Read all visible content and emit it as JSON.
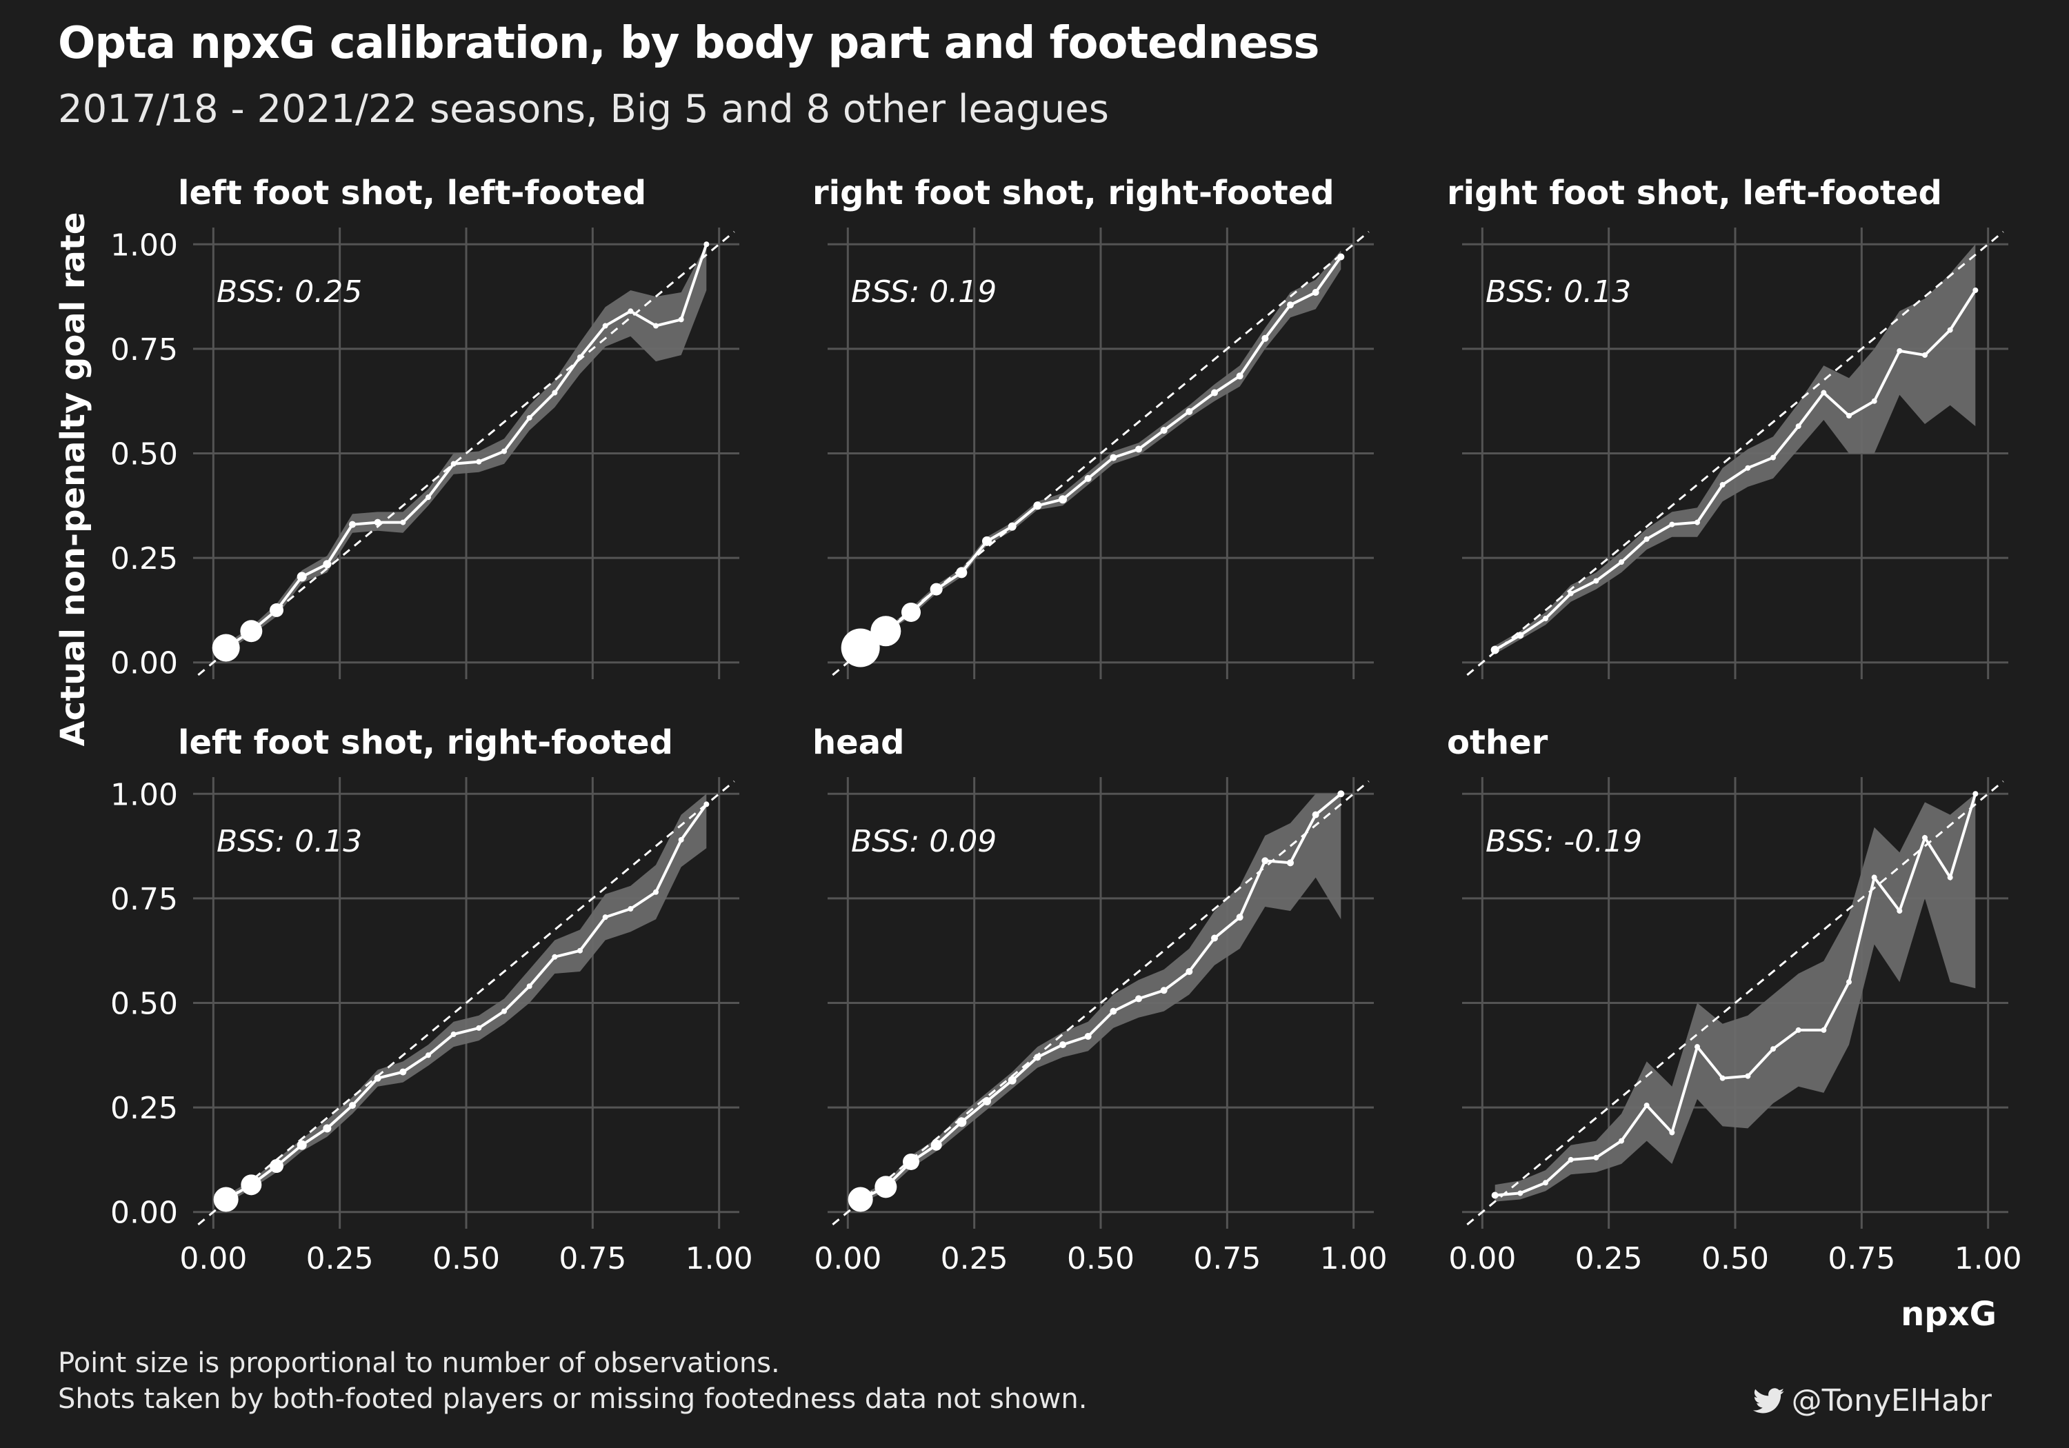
{
  "header": {
    "title": "Opta npxG calibration, by body part and footedness",
    "subtitle": "2017/18 - 2021/22 seasons, Big 5 and 8 other leagues"
  },
  "footer": {
    "caption_line1": "Point size is proportional to number of observations.",
    "caption_line2": "Shots taken by both-footed players or missing footedness data not shown.",
    "credit": "@TonyElHabr",
    "credit_icon": "twitter-icon"
  },
  "colors": {
    "background": "#1d1d1d",
    "grid": "#545454",
    "band": "#6a6a6a",
    "line": "#ffffff",
    "reference": "#ffffff"
  },
  "chart_data": {
    "type": "line",
    "facet_layout": "2 rows x 3 columns",
    "xlabel": "npxG",
    "ylabel": "Actual non-penalty goal rate",
    "xlim": [
      0,
      1
    ],
    "ylim": [
      0,
      1
    ],
    "ticks": [
      "0.00",
      "0.25",
      "0.50",
      "0.75",
      "1.00"
    ],
    "reference_line": "y = x (dashed)",
    "annotation_prefix": "BSS: ",
    "x": [
      0.025,
      0.075,
      0.125,
      0.175,
      0.225,
      0.275,
      0.325,
      0.375,
      0.425,
      0.475,
      0.525,
      0.575,
      0.625,
      0.675,
      0.725,
      0.775,
      0.825,
      0.875,
      0.925,
      0.975
    ],
    "panels": [
      {
        "title": "left foot shot, left-footed",
        "bss": "0.25",
        "y": [
          0.035,
          0.075,
          0.125,
          0.205,
          0.235,
          0.33,
          0.335,
          0.335,
          0.395,
          0.475,
          0.48,
          0.505,
          0.585,
          0.645,
          0.73,
          0.805,
          0.84,
          0.805,
          0.82,
          1.0
        ],
        "lower": [
          0.025,
          0.065,
          0.11,
          0.19,
          0.215,
          0.31,
          0.315,
          0.31,
          0.375,
          0.45,
          0.455,
          0.475,
          0.555,
          0.61,
          0.69,
          0.755,
          0.78,
          0.72,
          0.735,
          0.89
        ],
        "upper": [
          0.045,
          0.085,
          0.14,
          0.22,
          0.255,
          0.355,
          0.36,
          0.36,
          0.415,
          0.5,
          0.505,
          0.535,
          0.615,
          0.675,
          0.765,
          0.85,
          0.89,
          0.875,
          0.885,
          1.0
        ],
        "sizes": [
          20,
          16,
          10,
          7,
          6,
          5,
          5,
          4,
          4,
          4,
          4,
          4,
          4,
          4,
          4,
          4,
          4,
          4,
          4,
          4
        ]
      },
      {
        "title": "right foot shot, right-footed",
        "bss": "0.19",
        "y": [
          0.035,
          0.075,
          0.12,
          0.175,
          0.215,
          0.29,
          0.325,
          0.375,
          0.39,
          0.44,
          0.49,
          0.51,
          0.555,
          0.6,
          0.645,
          0.685,
          0.775,
          0.855,
          0.885,
          0.97
        ],
        "lower": [
          0.03,
          0.07,
          0.11,
          0.165,
          0.205,
          0.28,
          0.315,
          0.365,
          0.375,
          0.425,
          0.475,
          0.495,
          0.54,
          0.585,
          0.625,
          0.66,
          0.75,
          0.825,
          0.845,
          0.94
        ],
        "upper": [
          0.04,
          0.08,
          0.13,
          0.185,
          0.225,
          0.3,
          0.335,
          0.385,
          0.405,
          0.455,
          0.505,
          0.525,
          0.57,
          0.615,
          0.665,
          0.71,
          0.8,
          0.885,
          0.915,
          0.985
        ],
        "sizes": [
          28,
          22,
          14,
          9,
          8,
          7,
          6,
          6,
          6,
          5,
          5,
          5,
          5,
          5,
          5,
          5,
          5,
          5,
          5,
          5
        ]
      },
      {
        "title": "right foot shot, left-footed",
        "bss": "0.13",
        "y": [
          0.03,
          0.065,
          0.105,
          0.165,
          0.195,
          0.24,
          0.295,
          0.33,
          0.335,
          0.425,
          0.465,
          0.49,
          0.565,
          0.645,
          0.59,
          0.625,
          0.745,
          0.735,
          0.795,
          0.89
        ],
        "lower": [
          0.02,
          0.055,
          0.09,
          0.145,
          0.175,
          0.215,
          0.27,
          0.3,
          0.3,
          0.385,
          0.42,
          0.44,
          0.51,
          0.58,
          0.5,
          0.5,
          0.64,
          0.57,
          0.615,
          0.565
        ],
        "upper": [
          0.04,
          0.075,
          0.12,
          0.185,
          0.215,
          0.265,
          0.32,
          0.36,
          0.37,
          0.465,
          0.51,
          0.54,
          0.62,
          0.71,
          0.68,
          0.75,
          0.84,
          0.87,
          0.93,
          1.0
        ],
        "sizes": [
          6,
          5,
          4,
          4,
          4,
          4,
          4,
          4,
          4,
          4,
          4,
          4,
          4,
          4,
          4,
          4,
          4,
          4,
          4,
          4
        ]
      },
      {
        "title": "left foot shot, right-footed",
        "bss": "0.13",
        "y": [
          0.03,
          0.065,
          0.11,
          0.16,
          0.2,
          0.255,
          0.32,
          0.335,
          0.375,
          0.425,
          0.44,
          0.48,
          0.54,
          0.61,
          0.625,
          0.705,
          0.725,
          0.765,
          0.89,
          0.975
        ],
        "lower": [
          0.02,
          0.055,
          0.095,
          0.145,
          0.18,
          0.235,
          0.3,
          0.31,
          0.35,
          0.395,
          0.41,
          0.45,
          0.5,
          0.57,
          0.575,
          0.65,
          0.67,
          0.7,
          0.825,
          0.87
        ],
        "upper": [
          0.04,
          0.075,
          0.125,
          0.175,
          0.22,
          0.275,
          0.34,
          0.36,
          0.4,
          0.455,
          0.47,
          0.51,
          0.58,
          0.65,
          0.675,
          0.76,
          0.78,
          0.83,
          0.95,
          1.0
        ],
        "sizes": [
          18,
          15,
          10,
          7,
          6,
          5,
          5,
          5,
          4,
          4,
          4,
          4,
          4,
          4,
          4,
          4,
          4,
          4,
          4,
          4
        ]
      },
      {
        "title": "head",
        "bss": "0.09",
        "y": [
          0.03,
          0.06,
          0.12,
          0.16,
          0.215,
          0.265,
          0.315,
          0.37,
          0.4,
          0.42,
          0.48,
          0.51,
          0.53,
          0.575,
          0.655,
          0.705,
          0.84,
          0.835,
          0.95,
          1.0
        ],
        "lower": [
          0.02,
          0.05,
          0.105,
          0.145,
          0.195,
          0.245,
          0.295,
          0.345,
          0.37,
          0.385,
          0.44,
          0.465,
          0.48,
          0.52,
          0.59,
          0.63,
          0.73,
          0.72,
          0.8,
          0.7
        ],
        "upper": [
          0.04,
          0.07,
          0.135,
          0.175,
          0.235,
          0.285,
          0.335,
          0.395,
          0.43,
          0.455,
          0.52,
          0.555,
          0.58,
          0.63,
          0.72,
          0.78,
          0.9,
          0.93,
          1.0,
          1.0
        ],
        "sizes": [
          18,
          16,
          12,
          8,
          7,
          6,
          6,
          5,
          5,
          5,
          5,
          5,
          5,
          5,
          5,
          5,
          5,
          5,
          5,
          5
        ]
      },
      {
        "title": "other",
        "bss": "-0.19",
        "y": [
          0.04,
          0.045,
          0.07,
          0.125,
          0.13,
          0.17,
          0.255,
          0.19,
          0.395,
          0.32,
          0.325,
          0.39,
          0.435,
          0.435,
          0.55,
          0.8,
          0.72,
          0.895,
          0.8,
          1.0
        ],
        "lower": [
          0.025,
          0.03,
          0.05,
          0.09,
          0.095,
          0.115,
          0.17,
          0.115,
          0.27,
          0.205,
          0.2,
          0.26,
          0.3,
          0.285,
          0.4,
          0.64,
          0.55,
          0.75,
          0.55,
          0.535
        ],
        "upper": [
          0.065,
          0.075,
          0.1,
          0.16,
          0.17,
          0.235,
          0.36,
          0.3,
          0.5,
          0.45,
          0.47,
          0.52,
          0.57,
          0.6,
          0.71,
          0.92,
          0.86,
          0.98,
          0.95,
          1.0
        ],
        "sizes": [
          5,
          4,
          4,
          4,
          4,
          4,
          4,
          4,
          4,
          4,
          4,
          4,
          4,
          4,
          4,
          4,
          4,
          4,
          4,
          4
        ]
      }
    ]
  }
}
